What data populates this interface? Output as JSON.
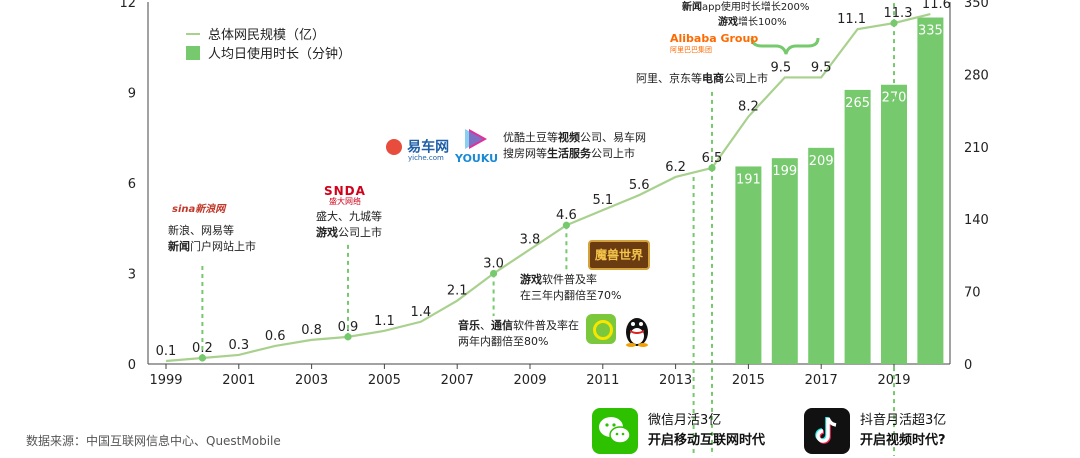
{
  "chart_data": {
    "type": "bar+line",
    "x_ticks": [
      "1999",
      "2001",
      "2003",
      "2005",
      "2007",
      "2009",
      "2011",
      "2013",
      "2015",
      "2017",
      "2019"
    ],
    "left_axis": {
      "ticks": [
        0,
        3,
        6,
        9,
        12
      ],
      "ylim": [
        0,
        12
      ]
    },
    "right_axis": {
      "ticks": [
        0,
        70,
        140,
        210,
        280,
        350
      ],
      "ylim": [
        0,
        350
      ]
    },
    "line_series": {
      "name": "总体网民规模（亿）",
      "points": [
        {
          "year": 1999,
          "value": 0.1,
          "label": "0.1"
        },
        {
          "year": 2000,
          "value": 0.2,
          "label": "0.2"
        },
        {
          "year": 2001,
          "value": 0.3,
          "label": "0.3"
        },
        {
          "year": 2002,
          "value": 0.6,
          "label": "0.6"
        },
        {
          "year": 2003,
          "value": 0.8,
          "label": "0.8"
        },
        {
          "year": 2004,
          "value": 0.9,
          "label": "0.9"
        },
        {
          "year": 2005,
          "value": 1.1,
          "label": "1.1"
        },
        {
          "year": 2006,
          "value": 1.4,
          "label": "1.4"
        },
        {
          "year": 2007,
          "value": 2.1,
          "label": "2.1"
        },
        {
          "year": 2008,
          "value": 3.0,
          "label": "3.0"
        },
        {
          "year": 2009,
          "value": 3.8,
          "label": "3.8"
        },
        {
          "year": 2010,
          "value": 4.6,
          "label": "4.6"
        },
        {
          "year": 2011,
          "value": 5.1,
          "label": "5.1"
        },
        {
          "year": 2012,
          "value": 5.6,
          "label": "5.6"
        },
        {
          "year": 2013,
          "value": 6.2,
          "label": "6.2"
        },
        {
          "year": 2014,
          "value": 6.5,
          "label": "6.5"
        },
        {
          "year": 2015,
          "value": 8.2,
          "label": "8.2"
        },
        {
          "year": 2016,
          "value": 9.5,
          "label": "9.5"
        },
        {
          "year": 2017,
          "value": 9.5,
          "label": "9.5"
        },
        {
          "year": 2018,
          "value": 11.1,
          "label": "11.1"
        },
        {
          "year": 2019,
          "value": 11.3,
          "label": "11.3"
        },
        {
          "year": 2020,
          "value": 11.6,
          "label": "11.6"
        }
      ]
    },
    "bar_series": {
      "name": "人均日使用时长（分钟）",
      "points": [
        {
          "year": 2015,
          "value": 191,
          "label": "191"
        },
        {
          "year": 2016,
          "value": 199,
          "label": "199"
        },
        {
          "year": 2017,
          "value": 209,
          "label": "209"
        },
        {
          "year": 2018,
          "value": 265,
          "label": "265"
        },
        {
          "year": 2019,
          "value": 270,
          "label": "270"
        },
        {
          "year": 2020,
          "value": 335,
          "label": "335"
        }
      ]
    },
    "markers": [
      2000,
      2004,
      2008,
      2010,
      2014,
      2019
    ],
    "colors": {
      "line": "#a9d18e",
      "bar": "#76c96d",
      "marker": "#76c96d"
    }
  },
  "legend": {
    "line_label": "总体网民规模（亿）",
    "bar_label": "人均日使用时长（分钟）"
  },
  "annotations": {
    "a2000": {
      "l1": "新浪、网易等",
      "l2_bold": "新闻",
      "l2_rest": "门户网站上市"
    },
    "a2004": {
      "l1": "盛大、九城等",
      "l2_bold": "游戏",
      "l2_rest": "公司上市"
    },
    "a2008": {
      "l1_bold": "音乐",
      "l1_mid": "、",
      "l1_bold2": "通信",
      "l1_rest": "软件普及率在",
      "l2": "两年内翻倍至80%"
    },
    "a2010": {
      "l1_bold": "游戏",
      "l1_rest": "软件普及率",
      "l2": "在三年内翻倍至70%"
    },
    "a2013": {
      "l1_pre": "优酷土豆等",
      "l1_bold": "视频",
      "l1_rest": "公司、易车网",
      "l2_pre": "搜房网等",
      "l2_bold": "生活服务",
      "l2_rest": "公司上市"
    },
    "a2014": {
      "pre": "阿里、京东等",
      "bold": "电商",
      "rest": "公司上市"
    },
    "a2016": {
      "l1_bold": "新闻",
      "l1_rest": "app使用时长增长200%",
      "l2_bold": "游戏",
      "l2_rest": "增长100%"
    }
  },
  "logos": {
    "sina": "sina新浪网",
    "snda": "SNDA",
    "snda_cn": "盛大网络",
    "yiche": "易车网",
    "yiche_sub": "yiche.com",
    "youku": "YOUKU",
    "wow": "魔兽世界",
    "alibaba": "Alibaba Group",
    "alibaba_cn": "阿里巴巴集团"
  },
  "footer": {
    "wechat_l1": "微信月活3亿",
    "wechat_l2": "开启移动互联网时代",
    "douyin_l1": "抖音月活超3亿",
    "douyin_l2": "开启视频时代?"
  },
  "source": "数据来源：中国互联网信息中心、QuestMobile"
}
